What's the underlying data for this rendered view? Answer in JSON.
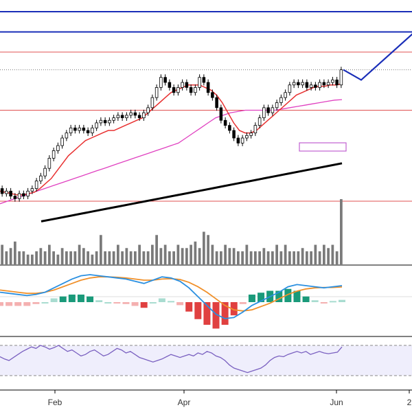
{
  "chart_data": {
    "type": "line",
    "title": "",
    "xlabel": "",
    "ylabel": "",
    "colors": {
      "candle_up": "#ffffff",
      "candle_down": "#000000",
      "candle_outline": "#000000",
      "ma_short": "#e83030",
      "ma_mid": "#e040c0",
      "ma_long": "#000000",
      "projection": "#1a2eb8",
      "level_red": "#e05050",
      "volume": "#7a7a7a",
      "macd_line": "#2a8fe0",
      "signal_line": "#f0902a",
      "hist_pos_strong": "#1a9a7a",
      "hist_pos_weak": "#a8dcd0",
      "hist_neg_strong": "#e04040",
      "hist_neg_weak": "#f4b0b0",
      "rsi_line": "#7a60c0",
      "rsi_band": "#efeefc"
    },
    "x_axis": {
      "tick_labels": [
        "Feb",
        "Apr",
        "Jun",
        "2"
      ]
    },
    "price_levels": {
      "blue_lines": [
        100,
        92
      ],
      "red_lines": [
        84,
        61,
        25
      ],
      "dotted_last": 77
    },
    "projection_path": [
      {
        "x": 0,
        "y": 77
      },
      {
        "x": 4,
        "y": 73
      },
      {
        "x": 16,
        "y": 92
      }
    ],
    "candles": [
      {
        "o": 30,
        "c": 28
      },
      {
        "o": 28,
        "c": 29
      },
      {
        "o": 29,
        "c": 27
      },
      {
        "o": 27,
        "c": 26
      },
      {
        "o": 26,
        "c": 28
      },
      {
        "o": 28,
        "c": 27
      },
      {
        "o": 27,
        "c": 29
      },
      {
        "o": 29,
        "c": 30
      },
      {
        "o": 30,
        "c": 33
      },
      {
        "o": 33,
        "c": 35
      },
      {
        "o": 35,
        "c": 38
      },
      {
        "o": 38,
        "c": 42
      },
      {
        "o": 42,
        "c": 45
      },
      {
        "o": 45,
        "c": 47
      },
      {
        "o": 47,
        "c": 50
      },
      {
        "o": 50,
        "c": 52
      },
      {
        "o": 52,
        "c": 54
      },
      {
        "o": 54,
        "c": 53
      },
      {
        "o": 53,
        "c": 54
      },
      {
        "o": 54,
        "c": 53
      },
      {
        "o": 53,
        "c": 52
      },
      {
        "o": 52,
        "c": 54
      },
      {
        "o": 54,
        "c": 56
      },
      {
        "o": 56,
        "c": 57
      },
      {
        "o": 57,
        "c": 56
      },
      {
        "o": 56,
        "c": 57
      },
      {
        "o": 57,
        "c": 58
      },
      {
        "o": 58,
        "c": 59
      },
      {
        "o": 59,
        "c": 58
      },
      {
        "o": 58,
        "c": 59
      },
      {
        "o": 59,
        "c": 60
      },
      {
        "o": 60,
        "c": 59
      },
      {
        "o": 59,
        "c": 58
      },
      {
        "o": 58,
        "c": 60
      },
      {
        "o": 60,
        "c": 62
      },
      {
        "o": 62,
        "c": 66
      },
      {
        "o": 66,
        "c": 70
      },
      {
        "o": 70,
        "c": 74
      },
      {
        "o": 74,
        "c": 72
      },
      {
        "o": 72,
        "c": 70
      },
      {
        "o": 70,
        "c": 68
      },
      {
        "o": 68,
        "c": 70
      },
      {
        "o": 70,
        "c": 72
      },
      {
        "o": 72,
        "c": 70
      },
      {
        "o": 70,
        "c": 68
      },
      {
        "o": 68,
        "c": 70
      },
      {
        "o": 70,
        "c": 74
      },
      {
        "o": 74,
        "c": 72
      },
      {
        "o": 72,
        "c": 68
      },
      {
        "o": 68,
        "c": 66
      },
      {
        "o": 66,
        "c": 62
      },
      {
        "o": 62,
        "c": 57
      },
      {
        "o": 57,
        "c": 55
      },
      {
        "o": 55,
        "c": 53
      },
      {
        "o": 53,
        "c": 50
      },
      {
        "o": 50,
        "c": 48
      },
      {
        "o": 48,
        "c": 50
      },
      {
        "o": 50,
        "c": 51
      },
      {
        "o": 51,
        "c": 52
      },
      {
        "o": 52,
        "c": 55
      },
      {
        "o": 55,
        "c": 58
      },
      {
        "o": 58,
        "c": 62
      },
      {
        "o": 62,
        "c": 60
      },
      {
        "o": 60,
        "c": 62
      },
      {
        "o": 62,
        "c": 64
      },
      {
        "o": 64,
        "c": 66
      },
      {
        "o": 66,
        "c": 68
      },
      {
        "o": 68,
        "c": 71
      },
      {
        "o": 71,
        "c": 72
      },
      {
        "o": 72,
        "c": 71
      },
      {
        "o": 71,
        "c": 72
      },
      {
        "o": 72,
        "c": 70
      },
      {
        "o": 70,
        "c": 71
      },
      {
        "o": 71,
        "c": 70
      },
      {
        "o": 70,
        "c": 72
      },
      {
        "o": 72,
        "c": 71
      },
      {
        "o": 71,
        "c": 72
      },
      {
        "o": 72,
        "c": 73
      },
      {
        "o": 73,
        "c": 71
      },
      {
        "o": 71,
        "c": 77
      }
    ],
    "ma_short": [
      29,
      28.5,
      28,
      27.5,
      27.5,
      28,
      28.5,
      30,
      32,
      34,
      37,
      40,
      43,
      45,
      47,
      49,
      50,
      51,
      52,
      53,
      53,
      54,
      55,
      56,
      57,
      58,
      60,
      62,
      64,
      66,
      68,
      69,
      70,
      71,
      71,
      71,
      70,
      69,
      67,
      64,
      60,
      56,
      53,
      52,
      52,
      53,
      55,
      57,
      59,
      61,
      63,
      65,
      67,
      68,
      69,
      70,
      70.5,
      70.5,
      71,
      71,
      71.5
    ],
    "ma_mid": [
      24,
      25,
      26,
      27,
      28,
      29,
      30,
      31,
      32,
      33,
      34,
      35,
      36,
      37,
      38,
      39,
      40,
      41,
      42,
      43,
      44,
      45,
      46,
      47,
      48,
      50,
      52,
      54,
      56,
      58,
      59,
      60,
      60.5,
      61,
      61,
      61,
      61,
      61,
      61.5,
      62,
      62.5,
      63,
      63.5,
      64,
      64.5,
      65,
      65.2
    ],
    "ma_long": [
      17,
      18,
      19,
      20,
      21,
      22,
      23,
      24,
      25,
      26,
      27,
      28,
      29,
      30,
      31,
      32,
      33,
      34,
      35,
      36,
      37,
      38,
      39,
      40
    ],
    "volume": [
      0.3,
      0.2,
      0.25,
      0.35,
      0.2,
      0.2,
      0.15,
      0.15,
      0.2,
      0.25,
      0.2,
      0.3,
      0.2,
      0.15,
      0.25,
      0.2,
      0.2,
      0.2,
      0.3,
      0.25,
      0.2,
      0.15,
      0.2,
      0.45,
      0.2,
      0.2,
      0.2,
      0.3,
      0.2,
      0.25,
      0.2,
      0.2,
      0.3,
      0.2,
      0.2,
      0.3,
      0.45,
      0.25,
      0.3,
      0.2,
      0.2,
      0.3,
      0.25,
      0.25,
      0.3,
      0.35,
      0.25,
      0.5,
      0.45,
      0.3,
      0.2,
      0.2,
      0.3,
      0.25,
      0.25,
      0.2,
      0.2,
      0.3,
      0.2,
      0.2,
      0.2,
      0.25,
      0.2,
      0.2,
      0.3,
      0.2,
      0.3,
      0.2,
      0.2,
      0.2,
      0.25,
      0.2,
      0.2,
      0.3,
      0.2,
      0.3,
      0.25,
      0.3,
      0.2,
      1.0
    ],
    "macd": [
      0.2,
      0.15,
      0.1,
      0.05,
      0.1,
      0.2,
      0.4,
      0.6,
      0.8,
      0.95,
      1.0,
      0.95,
      0.9,
      0.85,
      0.8,
      0.7,
      0.6,
      0.75,
      0.9,
      0.85,
      0.7,
      0.4,
      0.0,
      -0.4,
      -0.8,
      -1.0,
      -0.95,
      -0.7,
      -0.4,
      -0.2,
      0.0,
      0.2,
      0.45,
      0.55,
      0.5,
      0.45,
      0.4,
      0.45,
      0.5
    ],
    "signal": [
      0.3,
      0.25,
      0.2,
      0.15,
      0.15,
      0.2,
      0.3,
      0.45,
      0.6,
      0.75,
      0.85,
      0.9,
      0.9,
      0.88,
      0.85,
      0.8,
      0.75,
      0.75,
      0.8,
      0.82,
      0.78,
      0.65,
      0.45,
      0.2,
      -0.1,
      -0.4,
      -0.6,
      -0.65,
      -0.6,
      -0.45,
      -0.3,
      -0.1,
      0.1,
      0.25,
      0.35,
      0.4,
      0.42,
      0.42,
      0.44
    ],
    "rsi": [
      55,
      52,
      50,
      54,
      58,
      62,
      65,
      68,
      66,
      70,
      68,
      65,
      67,
      70,
      66,
      62,
      64,
      60,
      56,
      58,
      62,
      64,
      60,
      56,
      58,
      62,
      66,
      64,
      60,
      62,
      58,
      54,
      52,
      50,
      48,
      50,
      52,
      55,
      58,
      56,
      54,
      56,
      58,
      56,
      60,
      58,
      62,
      60,
      56,
      54,
      50,
      44,
      40,
      38,
      36,
      34,
      36,
      38,
      40,
      44,
      50,
      54,
      56,
      55,
      58,
      60,
      62,
      60,
      62,
      58,
      60,
      62,
      60,
      59,
      60,
      61,
      68
    ],
    "rsi_levels": [
      70,
      30
    ]
  }
}
